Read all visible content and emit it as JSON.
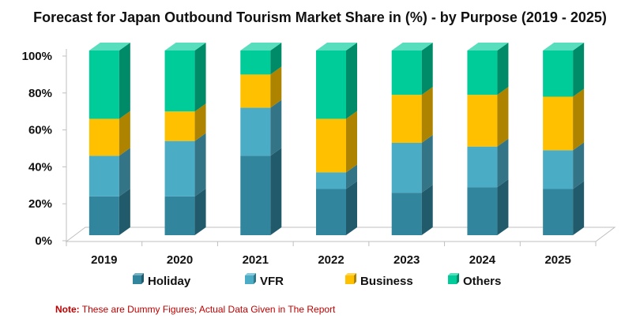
{
  "chart_data": {
    "type": "bar",
    "stacked": true,
    "style": "3d",
    "title": "Forecast for Japan Outbound Tourism Market Share in (%) - by Purpose (2019 - 2025)",
    "categories": [
      "2019",
      "2020",
      "2021",
      "2022",
      "2023",
      "2024",
      "2025"
    ],
    "series": [
      {
        "name": "Holiday",
        "color": "#31859c",
        "values": [
          21,
          21,
          43,
          25,
          23,
          26,
          25
        ]
      },
      {
        "name": "VFR",
        "color": "#4bacc6",
        "values": [
          22,
          30,
          26,
          9,
          27,
          22,
          21
        ]
      },
      {
        "name": "Business",
        "color": "#ffc000",
        "values": [
          20,
          16,
          18,
          29,
          26,
          28,
          29
        ]
      },
      {
        "name": "Others",
        "color": "#00cc99",
        "values": [
          37,
          33,
          13,
          37,
          24,
          24,
          25
        ]
      }
    ],
    "ylim": [
      0,
      100
    ],
    "yticks": [
      "0%",
      "20%",
      "40%",
      "60%",
      "80%",
      "100%"
    ],
    "legend_position": "bottom"
  },
  "note": {
    "label": "Note:",
    "text": " These are Dummy Figures; Actual Data Given in The Report"
  }
}
